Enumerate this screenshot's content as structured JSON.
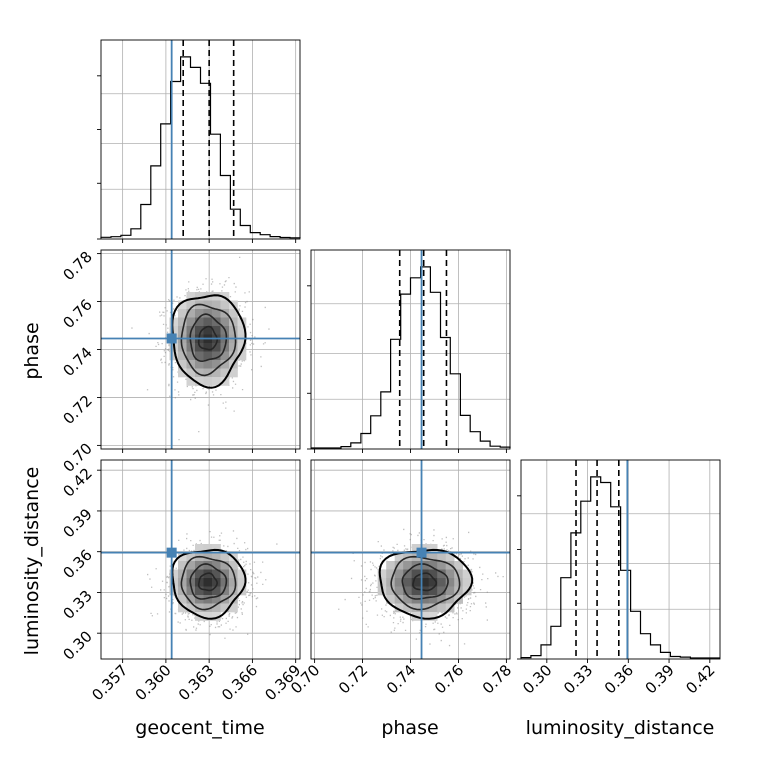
{
  "chart_data": {
    "type": "corner",
    "parameters": [
      "geocent_time",
      "phase",
      "luminosity_distance"
    ],
    "truths": {
      "geocent_time": 0.3604,
      "phase": 0.7446,
      "luminosity_distance": 0.3593
    },
    "truth_color": "#4682b4",
    "quantiles": {
      "geocent_time": [
        0.3612,
        0.363,
        0.3647
      ],
      "phase": [
        0.7355,
        0.7455,
        0.755
      ],
      "luminosity_distance": [
        0.3215,
        0.337,
        0.353
      ]
    },
    "axes": {
      "geocent_time": {
        "range": [
          0.3555,
          0.3693
        ],
        "ticks": [
          0.357,
          0.36,
          0.363,
          0.366,
          0.369
        ],
        "tick_labels": [
          "0.357",
          "0.360",
          "0.363",
          "0.366",
          "0.369"
        ],
        "label": "geocent_time"
      },
      "phase": {
        "range": [
          0.6985,
          0.7815
        ],
        "ticks": [
          0.7,
          0.72,
          0.74,
          0.76,
          0.78
        ],
        "tick_labels": [
          "0.70",
          "0.72",
          "0.74",
          "0.76",
          "0.78"
        ],
        "label": "phase"
      },
      "luminosity_distance": {
        "range": [
          0.281,
          0.4275
        ],
        "ticks": [
          0.3,
          0.33,
          0.36,
          0.39,
          0.42
        ],
        "tick_labels": [
          "0.30",
          "0.33",
          "0.36",
          "0.39",
          "0.42"
        ],
        "label": "luminosity_distance"
      }
    },
    "histograms": {
      "geocent_time": {
        "bin_edges": [
          0.3555,
          0.35619,
          0.35688,
          0.35757,
          0.35826,
          0.35895,
          0.35964,
          0.36033,
          0.36102,
          0.36171,
          0.3624,
          0.36309,
          0.36378,
          0.36447,
          0.36516,
          0.36585,
          0.36654,
          0.36723,
          0.36792,
          0.36861,
          0.3693
        ],
        "counts": [
          0.4,
          0.7,
          1.5,
          5.1,
          18.5,
          39.8,
          63.0,
          86.4,
          100,
          94.2,
          85.4,
          57.3,
          34.5,
          15.9,
          6.9,
          3.0,
          1.8,
          0.8,
          0.3,
          0.1
        ]
      },
      "phase": {
        "bin_edges": [
          0.6985,
          0.7027,
          0.7068,
          0.711,
          0.7151,
          0.7193,
          0.7234,
          0.7276,
          0.7317,
          0.7359,
          0.74,
          0.7442,
          0.7483,
          0.7525,
          0.7566,
          0.7608,
          0.7649,
          0.7691,
          0.7732,
          0.7774,
          0.7815
        ],
        "counts": [
          0,
          0,
          0,
          0.8,
          2.8,
          8.0,
          17.8,
          31.0,
          60.0,
          85.0,
          94.0,
          100,
          86.0,
          61.0,
          41.0,
          18.0,
          9.0,
          3.8,
          1.0,
          0.5
        ]
      },
      "luminosity_distance": {
        "bin_edges": [
          0.281,
          0.2883,
          0.2957,
          0.303,
          0.3103,
          0.3177,
          0.325,
          0.3323,
          0.3397,
          0.347,
          0.3543,
          0.3617,
          0.369,
          0.3763,
          0.3837,
          0.391,
          0.3983,
          0.4057,
          0.413,
          0.4203,
          0.4275
        ],
        "counts": [
          0.2,
          1.3,
          7.0,
          17.0,
          43.0,
          67.0,
          84.0,
          97.0,
          94.0,
          81.0,
          47.0,
          25.0,
          13.0,
          7.0,
          3.0,
          0.8,
          0.5,
          0,
          0,
          0
        ]
      }
    },
    "density_2d": {
      "phase_vs_geocent_time": {
        "mean": [
          0.3629,
          0.7445
        ],
        "sd": [
          0.00125,
          0.0095
        ],
        "contours": [
          0.5,
          1.0,
          1.5,
          2.0
        ]
      },
      "luminosity_distance_vs_geocent_time": {
        "mean": [
          0.3629,
          0.3375
        ],
        "sd": [
          0.00125,
          0.0125
        ],
        "contours": [
          0.5,
          1.0,
          1.5,
          2.0
        ]
      },
      "luminosity_distance_vs_phase": {
        "mean": [
          0.7458,
          0.3375
        ],
        "sd": [
          0.0095,
          0.0125
        ],
        "contours": [
          0.5,
          1.0,
          1.5,
          2.0
        ]
      }
    },
    "grid": true,
    "title": ""
  }
}
